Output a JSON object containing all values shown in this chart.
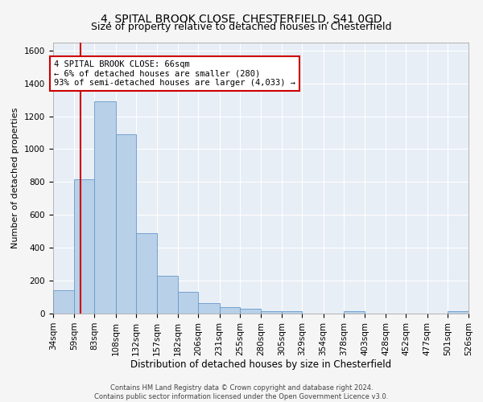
{
  "title1": "4, SPITAL BROOK CLOSE, CHESTERFIELD, S41 0GD",
  "title2": "Size of property relative to detached houses in Chesterfield",
  "xlabel": "Distribution of detached houses by size in Chesterfield",
  "ylabel": "Number of detached properties",
  "footnote1": "Contains HM Land Registry data © Crown copyright and database right 2024.",
  "footnote2": "Contains public sector information licensed under the Open Government Licence v3.0.",
  "bin_edges": [
    34,
    59,
    83,
    108,
    132,
    157,
    182,
    206,
    231,
    255,
    280,
    305,
    329,
    354,
    378,
    403,
    428,
    452,
    477,
    501,
    526
  ],
  "bar_heights": [
    140,
    815,
    1290,
    1090,
    490,
    230,
    130,
    65,
    38,
    27,
    15,
    15,
    0,
    0,
    15,
    0,
    0,
    0,
    0,
    15
  ],
  "bar_color": "#b8d0e8",
  "bar_edgecolor": "#6699cc",
  "vline_x": 66,
  "vline_color": "#cc0000",
  "annotation_line1": "4 SPITAL BROOK CLOSE: 66sqm",
  "annotation_line2": "← 6% of detached houses are smaller (280)",
  "annotation_line3": "93% of semi-detached houses are larger (4,033) →",
  "annotation_box_edgecolor": "#cc0000",
  "annotation_box_facecolor": "#ffffff",
  "ylim": [
    0,
    1650
  ],
  "yticks": [
    0,
    200,
    400,
    600,
    800,
    1000,
    1200,
    1400,
    1600
  ],
  "bg_color": "#e8eef5",
  "grid_color": "#ffffff",
  "fig_facecolor": "#f5f5f5",
  "title1_fontsize": 10,
  "title2_fontsize": 9,
  "xlabel_fontsize": 8.5,
  "ylabel_fontsize": 8,
  "tick_fontsize": 7.5,
  "annotation_fontsize": 7.5,
  "footnote_fontsize": 6
}
